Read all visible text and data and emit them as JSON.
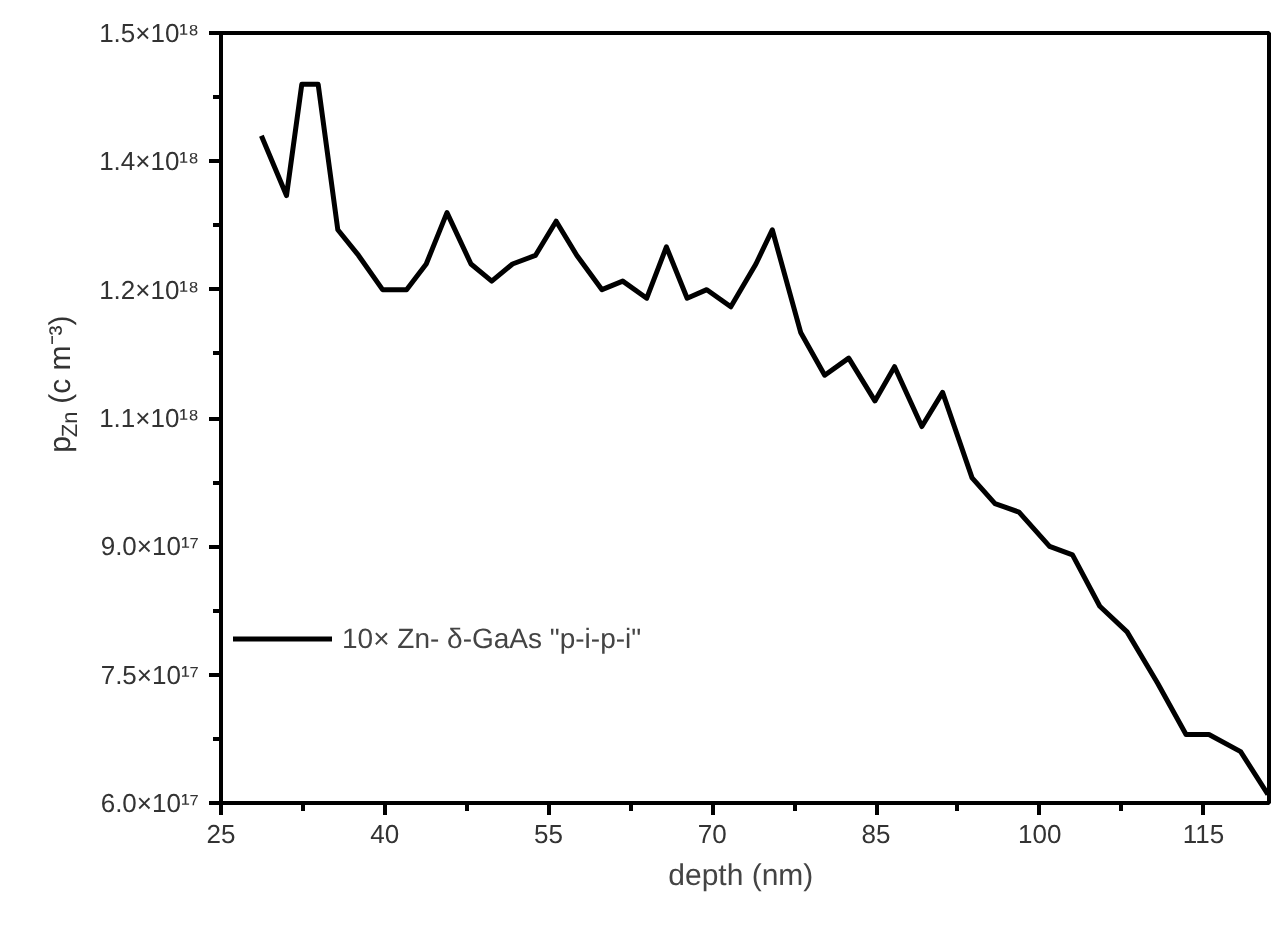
{
  "chart_data": {
    "type": "line",
    "xlabel": "depth  (nm)",
    "ylabel": "p$_{Zn}$ (c m⁻³)",
    "xlim": [
      25,
      121
    ],
    "xticks": [
      25,
      40,
      55,
      70,
      85,
      100,
      115
    ],
    "ylim": [
      6e+17,
      1.5e+18
    ],
    "yticks": [
      {
        "value": 6e+17,
        "label": "6.0×10¹⁷"
      },
      {
        "value": 7.5e+17,
        "label": "7.5×10¹⁷"
      },
      {
        "value": 9e+17,
        "label": "9.0×10¹⁷"
      },
      {
        "value": 1.05e+18,
        "label": "1.1×10¹⁸"
      },
      {
        "value": 1.2e+18,
        "label": "1.2×10¹⁸"
      },
      {
        "value": 1.35e+18,
        "label": "1.4×10¹⁸"
      },
      {
        "value": 1.5e+18,
        "label": "1.5×10¹⁸"
      }
    ],
    "grid": false,
    "legend": "bottom left",
    "line_style": "solid",
    "series": [
      {
        "name": "10× Zn- δ-GaAs \"p-i-p-i\"",
        "color": "#000000",
        "x": [
          28.7,
          31.0,
          32.4,
          33.9,
          35.7,
          37.6,
          39.8,
          42.0,
          43.8,
          45.7,
          47.9,
          49.8,
          51.7,
          53.8,
          55.7,
          57.6,
          59.9,
          61.8,
          64.0,
          65.8,
          67.7,
          69.5,
          71.7,
          74.0,
          75.5,
          78.1,
          80.3,
          82.5,
          84.9,
          86.7,
          89.2,
          91.1,
          93.8,
          95.9,
          98.1,
          100.9,
          103.0,
          105.5,
          108.0,
          110.8,
          113.4,
          115.5,
          118.4,
          120.9
        ],
        "values": [
          1.38e+18,
          1.31e+18,
          1.44e+18,
          1.44e+18,
          1.27e+18,
          1.24e+18,
          1.2e+18,
          1.2e+18,
          1.23e+18,
          1.29e+18,
          1.23e+18,
          1.21e+18,
          1.23e+18,
          1.24e+18,
          1.28e+18,
          1.24e+18,
          1.2e+18,
          1.21e+18,
          1.19e+18,
          1.25e+18,
          1.19e+18,
          1.2e+18,
          1.18e+18,
          1.23e+18,
          1.27e+18,
          1.15e+18,
          1.1e+18,
          1.12e+18,
          1.07e+18,
          1.11e+18,
          1.04e+18,
          1.08e+18,
          9.8e+17,
          9.5e+17,
          9.4e+17,
          9e+17,
          8.9e+17,
          8.3e+17,
          8e+17,
          7.4e+17,
          6.8e+17,
          6.8e+17,
          6.6e+17,
          6.1e+17
        ]
      }
    ]
  }
}
